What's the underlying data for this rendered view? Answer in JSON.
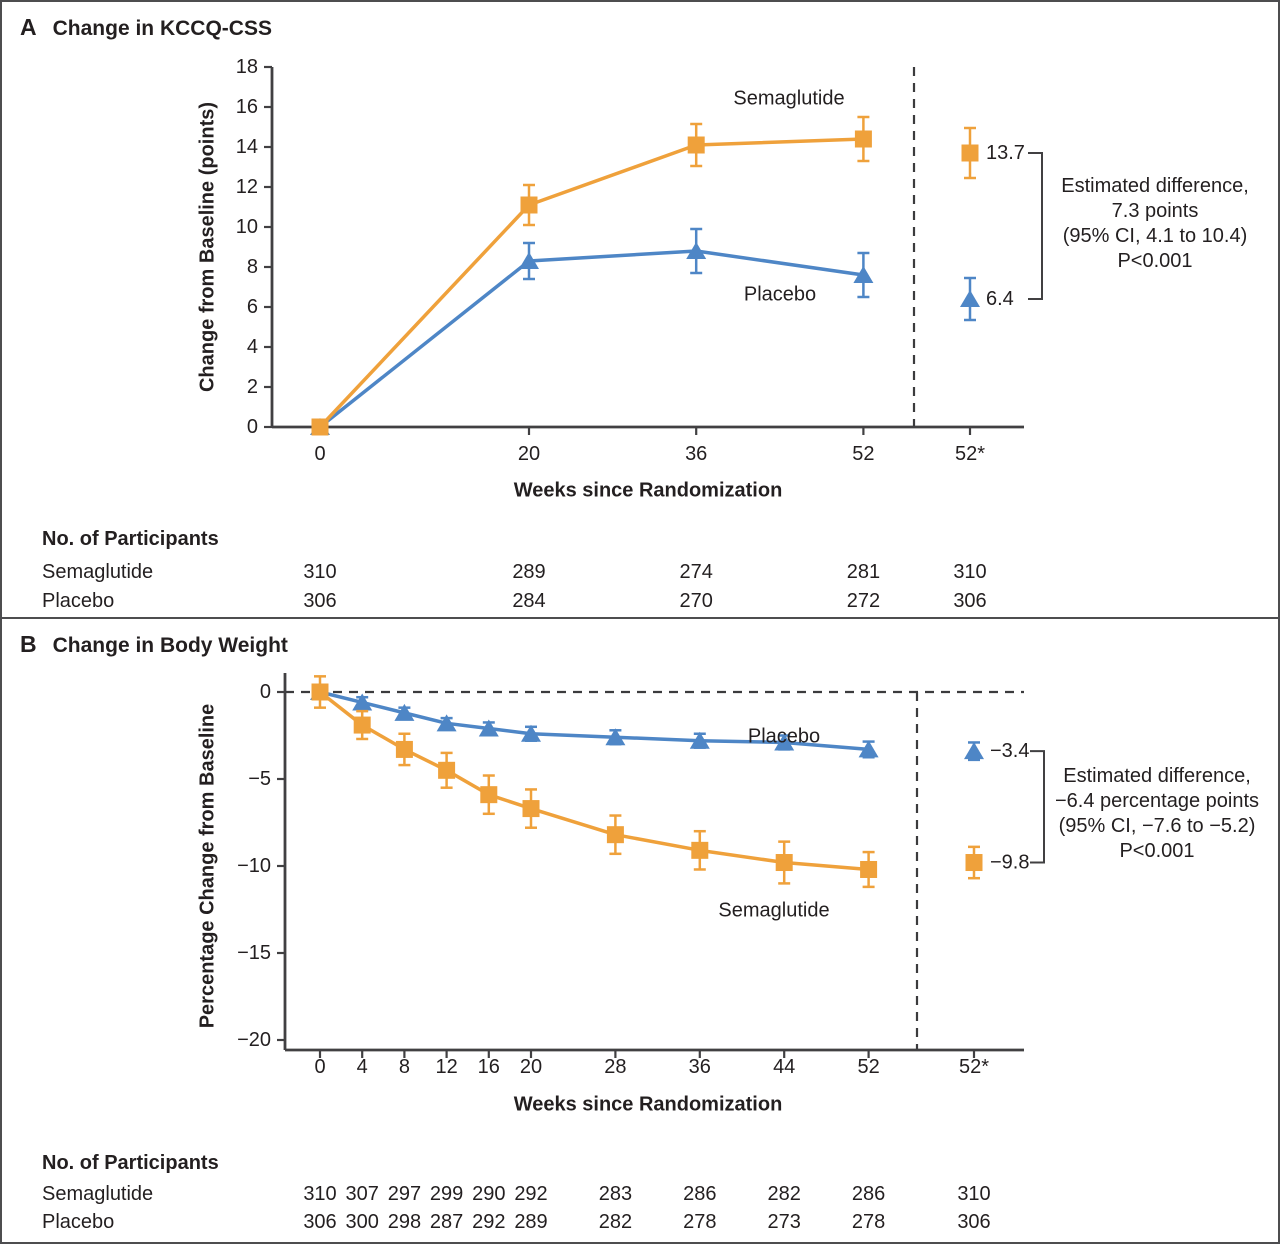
{
  "chart_data": [
    {
      "type": "line",
      "panel_letter": "A",
      "title": "Change in KCCQ-CSS",
      "xlabel": "Weeks since Randomization",
      "ylabel": "Change from Baseline (points)",
      "ylim": [
        0,
        18
      ],
      "y_tick_step": 2,
      "x_ticks": [
        0,
        20,
        36,
        52
      ],
      "extra_tick_label": "52*",
      "grid": "off",
      "colors": {
        "semaglutide": "#EFA13B",
        "placebo": "#4E86C6"
      },
      "series": [
        {
          "name": "Semaglutide",
          "marker": "square",
          "color": "#EFA13B",
          "x": [
            0,
            20,
            36,
            52
          ],
          "values": [
            0,
            11.1,
            14.1,
            14.4
          ],
          "errors": [
            0,
            1.0,
            1.05,
            1.1
          ],
          "week52_estimate": {
            "tick": "52*",
            "value": 13.7,
            "error": 1.25,
            "label": "13.7"
          }
        },
        {
          "name": "Placebo",
          "marker": "triangle",
          "color": "#4E86C6",
          "x": [
            0,
            20,
            36,
            52
          ],
          "values": [
            0,
            8.3,
            8.8,
            7.6
          ],
          "errors": [
            0,
            0.9,
            1.1,
            1.1
          ],
          "week52_estimate": {
            "tick": "52*",
            "value": 6.4,
            "error": 1.05,
            "label": "6.4"
          }
        }
      ],
      "annotation": {
        "lines": [
          "Estimated difference,",
          "7.3 points",
          "(95% CI, 4.1 to 10.4)",
          "P<0.001"
        ]
      },
      "participants": {
        "header": "No. of Participants",
        "rows": [
          {
            "label": "Semaglutide",
            "values": [
              "310",
              "289",
              "274",
              "281",
              "310"
            ]
          },
          {
            "label": "Placebo",
            "values": [
              "306",
              "284",
              "270",
              "272",
              "306"
            ]
          }
        ]
      }
    },
    {
      "type": "line",
      "panel_letter": "B",
      "title": "Change in Body Weight",
      "xlabel": "Weeks since Randomization",
      "ylabel": "Percentage Change from Baseline",
      "ylim": [
        -20,
        0
      ],
      "y_tick_step": 5,
      "x_ticks": [
        0,
        4,
        8,
        12,
        16,
        20,
        28,
        36,
        44,
        52
      ],
      "extra_tick_label": "52*",
      "grid": "off",
      "zero_reference_line": "dashed",
      "colors": {
        "semaglutide": "#EFA13B",
        "placebo": "#4E86C6"
      },
      "series": [
        {
          "name": "Semaglutide",
          "marker": "square",
          "color": "#EFA13B",
          "x": [
            0,
            4,
            8,
            12,
            16,
            20,
            28,
            36,
            44,
            52
          ],
          "values": [
            0,
            -1.9,
            -3.3,
            -4.5,
            -5.9,
            -6.7,
            -8.2,
            -9.1,
            -9.8,
            -10.2
          ],
          "errors": [
            0.9,
            0.8,
            0.9,
            1.0,
            1.1,
            1.1,
            1.1,
            1.1,
            1.2,
            1.0
          ],
          "week52_estimate": {
            "tick": "52*",
            "value": -9.8,
            "error": 0.9,
            "label": "−9.8"
          }
        },
        {
          "name": "Placebo",
          "marker": "triangle",
          "color": "#4E86C6",
          "x": [
            0,
            4,
            8,
            12,
            16,
            20,
            28,
            36,
            44,
            52
          ],
          "values": [
            0,
            -0.6,
            -1.2,
            -1.8,
            -2.1,
            -2.4,
            -2.6,
            -2.8,
            -2.9,
            -3.3
          ],
          "errors": [
            0.3,
            0.3,
            0.3,
            0.3,
            0.35,
            0.4,
            0.4,
            0.4,
            0.4,
            0.45
          ],
          "week52_estimate": {
            "tick": "52*",
            "value": -3.4,
            "error": 0.5,
            "label": "−3.4"
          }
        }
      ],
      "annotation": {
        "lines": [
          "Estimated difference,",
          "−6.4 percentage points",
          "(95% CI, −7.6 to −5.2)",
          "P<0.001"
        ]
      },
      "participants": {
        "header": "No. of Participants",
        "rows": [
          {
            "label": "Semaglutide",
            "values": [
              "310",
              "307",
              "297",
              "299",
              "290",
              "292",
              "283",
              "286",
              "282",
              "286",
              "310"
            ]
          },
          {
            "label": "Placebo",
            "values": [
              "306",
              "300",
              "298",
              "287",
              "292",
              "289",
              "282",
              "278",
              "273",
              "278",
              "306"
            ]
          }
        ]
      }
    }
  ]
}
